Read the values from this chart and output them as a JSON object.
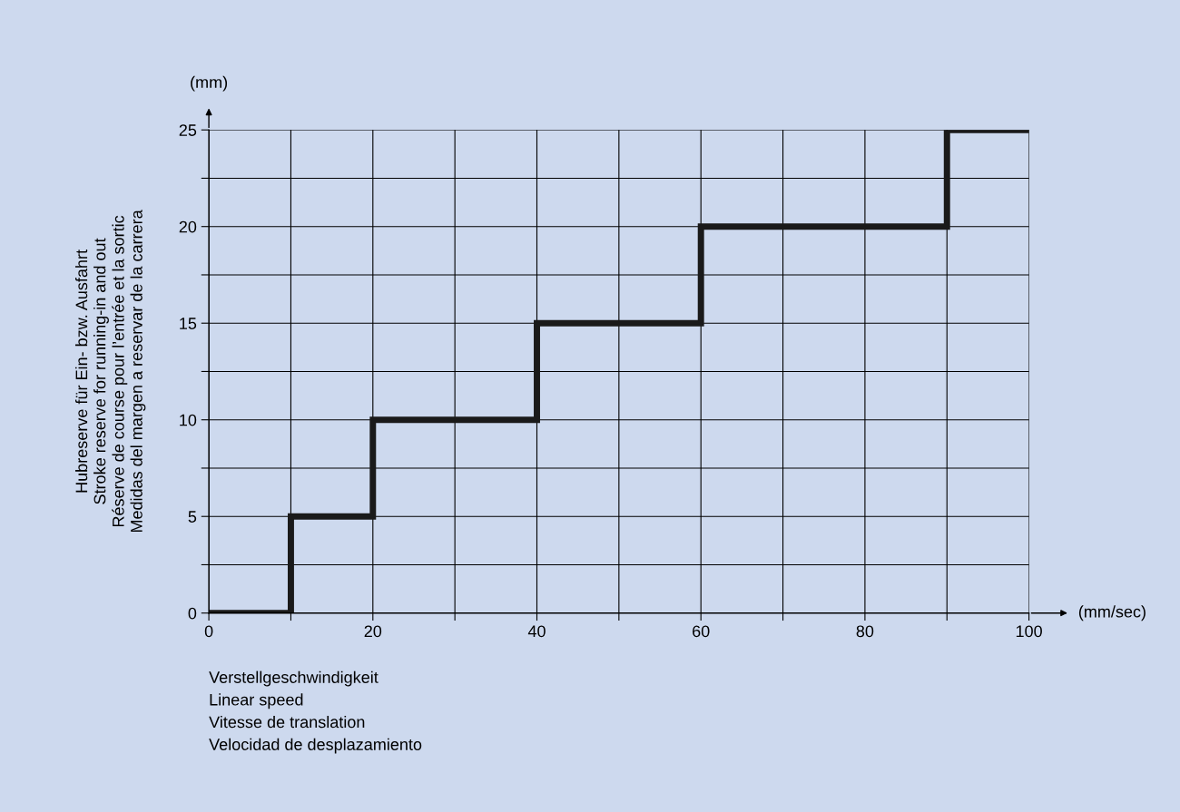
{
  "chart_data": {
    "type": "step",
    "xlabel": "Verstellgeschwindigkeit\nLinear speed\nVitesse de translation\nVelocidad de desplazamiento",
    "ylabel": "Hubreserve für Ein- bzw. Ausfahrt\nStroke reserve for running-in and out\nRéserve de course pour l’entrée et la sortic\nMedidas del margen a reservar de la carrera",
    "annotations": [
      "(mm)",
      "(mm/sec)"
    ],
    "x": [
      0,
      10,
      20,
      40,
      60,
      90,
      100
    ],
    "series": [
      {
        "color": "#1a1a1a",
        "values": [
          0,
          5,
          10,
          15,
          20,
          25,
          25
        ]
      }
    ],
    "xlim": [
      0,
      100
    ],
    "ylim": [
      0,
      25
    ],
    "xticks": [
      0,
      {
        "value": 10,
        "label": null
      },
      20,
      {
        "value": 30,
        "label": null
      },
      40,
      {
        "value": 50,
        "label": null
      },
      60,
      {
        "value": 70,
        "label": null
      },
      80,
      {
        "value": 90,
        "label": null
      },
      100
    ],
    "yticks": [
      0,
      {
        "value": 2.5,
        "label": null
      },
      5,
      {
        "value": 7.5,
        "label": null
      },
      10,
      {
        "value": 12.5,
        "label": null
      },
      15,
      {
        "value": 17.5,
        "label": null
      },
      20,
      {
        "value": 22.5,
        "label": null
      },
      25
    ],
    "grid": true,
    "line_style": "solid",
    "marker": "none"
  }
}
